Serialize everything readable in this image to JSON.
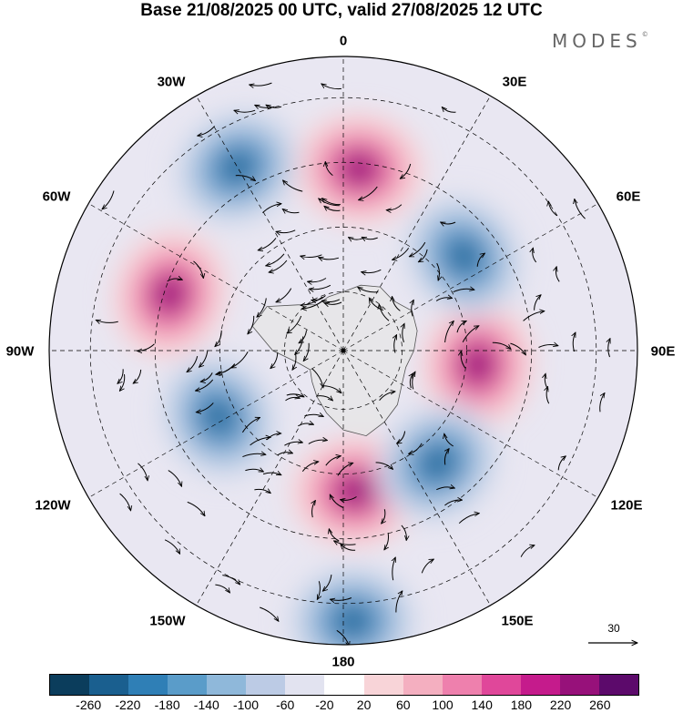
{
  "title": "Base 21/08/2025 00 UTC, valid 27/08/2025 12 UTC",
  "brand": "MODES",
  "brand_mark": "©",
  "map": {
    "projection": "south-polar-stereographic",
    "longitude_labels": [
      "0",
      "30E",
      "60E",
      "90E",
      "120E",
      "150E",
      "180",
      "150W",
      "120W",
      "90W",
      "60W",
      "30W"
    ],
    "reference_vector_label": "30",
    "anomaly_centers": [
      {
        "name": "positive-anomaly-0-deg",
        "sign": "positive",
        "lon": 5,
        "colat": 0.62
      },
      {
        "name": "positive-anomaly-90e",
        "sign": "positive",
        "lon": 96,
        "colat": 0.46
      },
      {
        "name": "positive-anomaly-75w",
        "sign": "positive",
        "lon": -72,
        "colat": 0.62
      },
      {
        "name": "positive-anomaly-170e",
        "sign": "positive",
        "lon": 175,
        "colat": 0.48
      },
      {
        "name": "negative-anomaly-30w",
        "sign": "negative",
        "lon": -30,
        "colat": 0.72
      },
      {
        "name": "negative-anomaly-50e",
        "sign": "negative",
        "lon": 52,
        "colat": 0.52
      },
      {
        "name": "negative-anomaly-135e",
        "sign": "negative",
        "lon": 140,
        "colat": 0.5
      },
      {
        "name": "negative-anomaly-120w",
        "sign": "negative",
        "lon": -118,
        "colat": 0.48
      },
      {
        "name": "negative-anomaly-175e",
        "sign": "negative",
        "lon": 178,
        "colat": 0.92
      }
    ]
  },
  "colorbar": {
    "colors": [
      "#0b3d5c",
      "#1a5f8f",
      "#2f7fb6",
      "#5a9cc9",
      "#8fb8da",
      "#bccbe5",
      "#e2e3f0",
      "#ffffff",
      "#f8d4d8",
      "#f4afc0",
      "#ee80ad",
      "#e0479a",
      "#c51b8c",
      "#97117a",
      "#5c0a6b"
    ],
    "tick_labels": [
      "-260",
      "-220",
      "-180",
      "-140",
      "-100",
      "-60",
      "-20",
      "20",
      "60",
      "100",
      "140",
      "180",
      "220",
      "260"
    ]
  }
}
